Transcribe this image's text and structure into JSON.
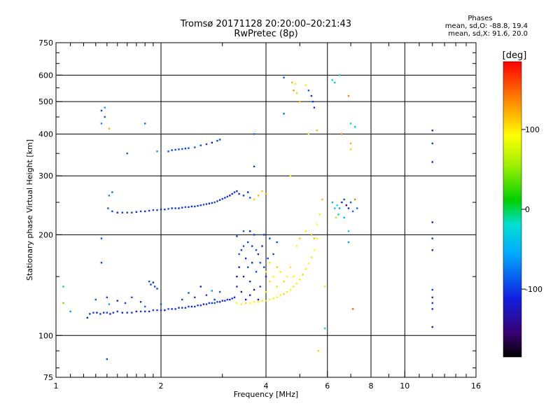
{
  "header": {
    "title": "Tromsø 20171128 20:20:00–20:21:43",
    "subtitle": "RwPretec (8p)"
  },
  "phases": {
    "title": "Phases",
    "line_o": "mean, sd,O:  -88.8, 19.4",
    "line_x": "mean, sd,X:  91.6, 20.0"
  },
  "colorbar": {
    "unit": "[deg]",
    "ticks": [
      {
        "value": 100,
        "label": "100"
      },
      {
        "value": 0,
        "label": "0"
      },
      {
        "value": -100,
        "label": "-100"
      }
    ],
    "range": [
      -185,
      185
    ]
  },
  "chart_data": {
    "type": "scatter",
    "xlabel": "Frequency [MHz]",
    "ylabel": "Stationary phase Virtual Height [km]",
    "xscale": "log",
    "yscale": "log",
    "xlim": [
      1,
      16
    ],
    "ylim": [
      75,
      750
    ],
    "xticks": [
      {
        "value": 1,
        "label": "1"
      },
      {
        "value": 2,
        "label": "2"
      },
      {
        "value": 4,
        "label": "4"
      },
      {
        "value": 6,
        "label": "6"
      },
      {
        "value": 8,
        "label": "8"
      },
      {
        "value": 10,
        "label": "10"
      },
      {
        "value": 16,
        "label": "16"
      }
    ],
    "yticks": [
      {
        "value": 75,
        "label": "75"
      },
      {
        "value": 100,
        "label": "100"
      },
      {
        "value": 200,
        "label": "200"
      },
      {
        "value": 300,
        "label": "300"
      },
      {
        "value": 400,
        "label": "400"
      },
      {
        "value": 500,
        "label": "500"
      },
      {
        "value": 600,
        "label": "600"
      },
      {
        "value": 750,
        "label": "750"
      }
    ],
    "major_grid_x": [
      2,
      4,
      6,
      8,
      10
    ],
    "major_grid_y": [
      100,
      200,
      300,
      400,
      500,
      600
    ],
    "minor_x": [
      1.1,
      1.2,
      1.3,
      1.4,
      1.5,
      1.6,
      1.7,
      1.8,
      1.9,
      3,
      5,
      7,
      9,
      11,
      12,
      13,
      14,
      15
    ],
    "minor_y": [
      80,
      90,
      150,
      250,
      350,
      450,
      550,
      650,
      700
    ],
    "colorbar": "right",
    "points": [
      [
        1.05,
        140,
        -40
      ],
      [
        1.05,
        125,
        40
      ],
      [
        1.1,
        118,
        -60
      ],
      [
        1.23,
        113,
        -110
      ],
      [
        1.25,
        116,
        -100
      ],
      [
        1.28,
        117,
        -95
      ],
      [
        1.31,
        117,
        -110
      ],
      [
        1.34,
        116,
        -100
      ],
      [
        1.37,
        117,
        -105
      ],
      [
        1.4,
        117,
        -100
      ],
      [
        1.43,
        116,
        -110
      ],
      [
        1.46,
        117,
        -105
      ],
      [
        1.5,
        118,
        -100
      ],
      [
        1.55,
        117,
        -110
      ],
      [
        1.6,
        117,
        -105
      ],
      [
        1.65,
        117,
        -100
      ],
      [
        1.7,
        118,
        -110
      ],
      [
        1.75,
        118,
        -100
      ],
      [
        1.8,
        118,
        -105
      ],
      [
        1.85,
        118,
        -110
      ],
      [
        1.9,
        119,
        -100
      ],
      [
        1.95,
        119,
        -105
      ],
      [
        2.0,
        119,
        -100
      ],
      [
        2.05,
        119,
        -110
      ],
      [
        2.1,
        120,
        -95
      ],
      [
        2.15,
        120,
        -105
      ],
      [
        2.2,
        120,
        -100
      ],
      [
        2.25,
        121,
        -110
      ],
      [
        2.3,
        121,
        -100
      ],
      [
        2.35,
        121,
        -105
      ],
      [
        2.4,
        122,
        -100
      ],
      [
        2.45,
        122,
        -110
      ],
      [
        2.5,
        122,
        -100
      ],
      [
        2.55,
        123,
        -105
      ],
      [
        2.6,
        123,
        -100
      ],
      [
        2.65,
        124,
        -110
      ],
      [
        2.7,
        124,
        -100
      ],
      [
        2.75,
        125,
        -105
      ],
      [
        2.8,
        125,
        -100
      ],
      [
        2.85,
        125,
        -95
      ],
      [
        2.9,
        126,
        -100
      ],
      [
        2.95,
        126,
        -110
      ],
      [
        3.0,
        127,
        -100
      ],
      [
        3.05,
        127,
        -105
      ],
      [
        3.1,
        128,
        -100
      ],
      [
        3.15,
        128,
        -110
      ],
      [
        3.2,
        129,
        -100
      ],
      [
        1.3,
        128,
        -90
      ],
      [
        1.4,
        130,
        -100
      ],
      [
        1.42,
        124,
        -60
      ],
      [
        1.5,
        127,
        -110
      ],
      [
        1.58,
        125,
        -100
      ],
      [
        1.65,
        130,
        -90
      ],
      [
        1.75,
        126,
        -105
      ],
      [
        1.8,
        122,
        -80
      ],
      [
        1.85,
        145,
        -90
      ],
      [
        1.87,
        142,
        -100
      ],
      [
        1.9,
        144,
        -110
      ],
      [
        1.92,
        140,
        -95
      ],
      [
        1.95,
        138,
        -100
      ],
      [
        2.0,
        124,
        -90
      ],
      [
        2.3,
        128,
        -100
      ],
      [
        2.4,
        134,
        -90
      ],
      [
        2.5,
        130,
        -100
      ],
      [
        2.6,
        140,
        -110
      ],
      [
        2.7,
        132,
        -100
      ],
      [
        2.8,
        136,
        -60
      ],
      [
        2.85,
        128,
        -100
      ],
      [
        2.95,
        135,
        -90
      ],
      [
        3.25,
        130,
        -110
      ],
      [
        3.3,
        140,
        -100
      ],
      [
        3.35,
        160,
        -110
      ],
      [
        3.4,
        180,
        -100
      ],
      [
        3.45,
        150,
        -120
      ],
      [
        3.5,
        170,
        -110
      ],
      [
        3.55,
        190,
        -100
      ],
      [
        3.6,
        145,
        -105
      ],
      [
        3.65,
        165,
        -110
      ],
      [
        3.7,
        200,
        -100
      ],
      [
        3.75,
        155,
        -95
      ],
      [
        3.8,
        175,
        -110
      ],
      [
        3.85,
        140,
        -100
      ],
      [
        3.9,
        185,
        -110
      ],
      [
        3.95,
        160,
        -100
      ],
      [
        4.0,
        150,
        -105
      ],
      [
        4.05,
        170,
        -100
      ],
      [
        4.1,
        195,
        -95
      ],
      [
        3.3,
        150,
        -130
      ],
      [
        3.4,
        135,
        -140
      ],
      [
        3.5,
        128,
        -135
      ],
      [
        3.6,
        132,
        -130
      ],
      [
        3.7,
        137,
        -140
      ],
      [
        3.8,
        128,
        -130
      ],
      [
        3.35,
        175,
        -90
      ],
      [
        3.45,
        185,
        -95
      ],
      [
        3.55,
        160,
        -90
      ],
      [
        3.65,
        185,
        -100
      ],
      [
        3.75,
        180,
        -90
      ],
      [
        3.85,
        165,
        -95
      ],
      [
        3.3,
        198,
        -100
      ],
      [
        3.45,
        205,
        -90
      ],
      [
        3.6,
        205,
        -110
      ],
      [
        3.95,
        200,
        -100
      ],
      [
        4.2,
        175,
        -100
      ],
      [
        4.3,
        190,
        -95
      ],
      [
        3.3,
        125,
        90
      ],
      [
        3.4,
        124,
        100
      ],
      [
        3.5,
        125,
        110
      ],
      [
        3.6,
        125,
        90
      ],
      [
        3.7,
        126,
        100
      ],
      [
        3.8,
        126,
        95
      ],
      [
        3.9,
        127,
        100
      ],
      [
        4.0,
        127,
        110
      ],
      [
        4.1,
        128,
        90
      ],
      [
        4.2,
        129,
        100
      ],
      [
        4.3,
        130,
        95
      ],
      [
        4.4,
        132,
        100
      ],
      [
        4.5,
        133,
        110
      ],
      [
        4.6,
        135,
        100
      ],
      [
        4.7,
        137,
        90
      ],
      [
        4.8,
        140,
        100
      ],
      [
        4.9,
        143,
        95
      ],
      [
        5.0,
        147,
        100
      ],
      [
        5.1,
        152,
        110
      ],
      [
        5.2,
        158,
        100
      ],
      [
        5.3,
        164,
        95
      ],
      [
        5.4,
        171,
        100
      ],
      [
        5.5,
        180,
        90
      ],
      [
        5.6,
        195,
        80
      ],
      [
        4.0,
        135,
        95
      ],
      [
        4.1,
        145,
        100
      ],
      [
        4.2,
        150,
        90
      ],
      [
        4.3,
        140,
        105
      ],
      [
        4.4,
        155,
        100
      ],
      [
        4.5,
        145,
        110
      ],
      [
        4.6,
        150,
        95
      ],
      [
        4.7,
        160,
        100
      ],
      [
        4.8,
        150,
        90
      ],
      [
        4.1,
        165,
        100
      ],
      [
        4.3,
        160,
        110
      ],
      [
        4.0,
        155,
        95
      ],
      [
        4.9,
        185,
        100
      ],
      [
        5.0,
        195,
        110
      ],
      [
        5.2,
        205,
        100
      ],
      [
        5.4,
        200,
        120
      ],
      [
        5.6,
        215,
        90
      ],
      [
        5.7,
        230,
        80
      ],
      [
        1.41,
        240,
        -90
      ],
      [
        1.45,
        235,
        -100
      ],
      [
        1.5,
        233,
        -110
      ],
      [
        1.55,
        233,
        -100
      ],
      [
        1.6,
        233,
        -105
      ],
      [
        1.65,
        233,
        -100
      ],
      [
        1.7,
        234,
        -110
      ],
      [
        1.75,
        235,
        -100
      ],
      [
        1.8,
        235,
        -105
      ],
      [
        1.85,
        236,
        -100
      ],
      [
        1.9,
        237,
        -95
      ],
      [
        1.95,
        237,
        -100
      ],
      [
        2.0,
        238,
        -110
      ],
      [
        2.05,
        238,
        -100
      ],
      [
        2.1,
        239,
        -90
      ],
      [
        2.15,
        240,
        -105
      ],
      [
        2.2,
        240,
        -100
      ],
      [
        2.25,
        240,
        -110
      ],
      [
        2.3,
        241,
        -100
      ],
      [
        2.35,
        242,
        -95
      ],
      [
        2.4,
        242,
        -100
      ],
      [
        2.45,
        243,
        -110
      ],
      [
        2.5,
        243,
        -100
      ],
      [
        2.55,
        244,
        -105
      ],
      [
        2.6,
        245,
        -100
      ],
      [
        2.65,
        246,
        -90
      ],
      [
        2.7,
        247,
        -100
      ],
      [
        2.75,
        248,
        -110
      ],
      [
        2.8,
        249,
        -100
      ],
      [
        2.85,
        250,
        -95
      ],
      [
        2.9,
        252,
        -100
      ],
      [
        2.95,
        254,
        -110
      ],
      [
        3.0,
        256,
        -100
      ],
      [
        3.05,
        258,
        -105
      ],
      [
        3.1,
        260,
        -100
      ],
      [
        3.15,
        262,
        -120
      ],
      [
        3.2,
        265,
        -110
      ],
      [
        3.25,
        268,
        -100
      ],
      [
        3.3,
        270,
        -120
      ],
      [
        3.35,
        265,
        -110
      ],
      [
        3.45,
        262,
        -100
      ],
      [
        3.55,
        268,
        -110
      ],
      [
        3.6,
        258,
        -90
      ],
      [
        3.7,
        255,
        110
      ],
      [
        3.8,
        262,
        120
      ],
      [
        3.9,
        270,
        115
      ],
      [
        4.0,
        265,
        125
      ],
      [
        1.42,
        262,
        -70
      ],
      [
        1.45,
        268,
        -80
      ],
      [
        2.1,
        355,
        -90
      ],
      [
        2.15,
        358,
        -100
      ],
      [
        2.2,
        359,
        -95
      ],
      [
        2.25,
        360,
        -100
      ],
      [
        2.3,
        361,
        -90
      ],
      [
        2.35,
        362,
        -100
      ],
      [
        2.4,
        363,
        -95
      ],
      [
        2.5,
        365,
        -90
      ],
      [
        2.6,
        370,
        -95
      ],
      [
        2.7,
        373,
        -100
      ],
      [
        2.8,
        377,
        -110
      ],
      [
        2.9,
        382,
        -100
      ],
      [
        2.95,
        385,
        -95
      ],
      [
        1.35,
        470,
        -100
      ],
      [
        1.38,
        480,
        -60
      ],
      [
        1.38,
        450,
        -90
      ],
      [
        1.35,
        430,
        -70
      ],
      [
        1.42,
        415,
        120
      ],
      [
        1.6,
        350,
        -90
      ],
      [
        1.8,
        430,
        -80
      ],
      [
        1.95,
        355,
        -60
      ],
      [
        3.7,
        400,
        -80
      ],
      [
        3.7,
        320,
        -100
      ],
      [
        1.4,
        85,
        -100
      ],
      [
        1.35,
        165,
        -100
      ],
      [
        1.35,
        195,
        -90
      ],
      [
        4.5,
        590,
        -90
      ],
      [
        4.5,
        460,
        -80
      ],
      [
        4.75,
        570,
        120
      ],
      [
        4.85,
        565,
        100
      ],
      [
        4.8,
        540,
        130
      ],
      [
        4.9,
        530,
        110
      ],
      [
        5.0,
        500,
        120
      ],
      [
        5.2,
        560,
        100
      ],
      [
        5.3,
        540,
        -90
      ],
      [
        5.4,
        520,
        -110
      ],
      [
        5.45,
        500,
        -100
      ],
      [
        5.5,
        480,
        -100
      ],
      [
        5.6,
        410,
        120
      ],
      [
        5.3,
        400,
        100
      ],
      [
        4.7,
        300,
        90
      ],
      [
        5.65,
        90,
        110
      ],
      [
        5.5,
        195,
        120
      ],
      [
        5.8,
        255,
        120
      ],
      [
        5.9,
        105,
        -20
      ],
      [
        6.2,
        580,
        -20
      ],
      [
        6.3,
        570,
        -40
      ],
      [
        6.5,
        600,
        -10
      ],
      [
        6.9,
        520,
        140
      ],
      [
        7.0,
        430,
        -20
      ],
      [
        6.6,
        400,
        140
      ],
      [
        7.2,
        420,
        -40
      ],
      [
        7.0,
        375,
        120
      ],
      [
        7.0,
        360,
        110
      ],
      [
        6.2,
        250,
        -50
      ],
      [
        6.3,
        240,
        -40
      ],
      [
        6.4,
        245,
        -20
      ],
      [
        6.5,
        240,
        -60
      ],
      [
        6.6,
        250,
        -120
      ],
      [
        6.7,
        255,
        -100
      ],
      [
        6.8,
        245,
        -150
      ],
      [
        6.9,
        240,
        -110
      ],
      [
        7.0,
        250,
        -90
      ],
      [
        6.9,
        205,
        -40
      ],
      [
        6.7,
        225,
        -50
      ],
      [
        7.1,
        235,
        -80
      ],
      [
        7.2,
        255,
        140
      ],
      [
        7.3,
        240,
        -80
      ],
      [
        6.35,
        225,
        60
      ],
      [
        6.45,
        230,
        -10
      ],
      [
        6.9,
        190,
        -60
      ],
      [
        7.1,
        120,
        150
      ],
      [
        5.9,
        140,
        80
      ],
      [
        12.0,
        410,
        -110
      ],
      [
        12.0,
        375,
        -100
      ],
      [
        12.0,
        330,
        -110
      ],
      [
        12.0,
        218,
        -110
      ],
      [
        12.0,
        195,
        -100
      ],
      [
        12.0,
        180,
        -110
      ],
      [
        12.0,
        137,
        -100
      ],
      [
        12.0,
        130,
        -110
      ],
      [
        12.0,
        125,
        -100
      ],
      [
        12.0,
        120,
        -110
      ],
      [
        12.0,
        106,
        -110
      ]
    ]
  }
}
